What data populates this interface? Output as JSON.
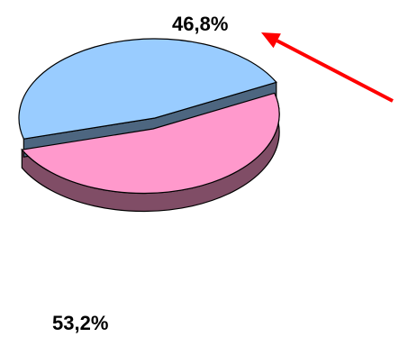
{
  "chart_data": {
    "type": "pie",
    "style": "3d",
    "categories": [
      "",
      ""
    ],
    "values": [
      46.8,
      53.2
    ],
    "data_labels": [
      "46,8%",
      "53,2%"
    ],
    "colors": {
      "slice_top": [
        "#99ccff",
        "#ff99cc"
      ],
      "slice_side": [
        "#4d6680",
        "#804d66"
      ],
      "outline": "#000000",
      "arrow": "#ff0000"
    },
    "annotations": [
      {
        "type": "arrow",
        "color": "#ff0000",
        "points_to": "46,8%"
      }
    ],
    "title": "",
    "legend": "none"
  }
}
